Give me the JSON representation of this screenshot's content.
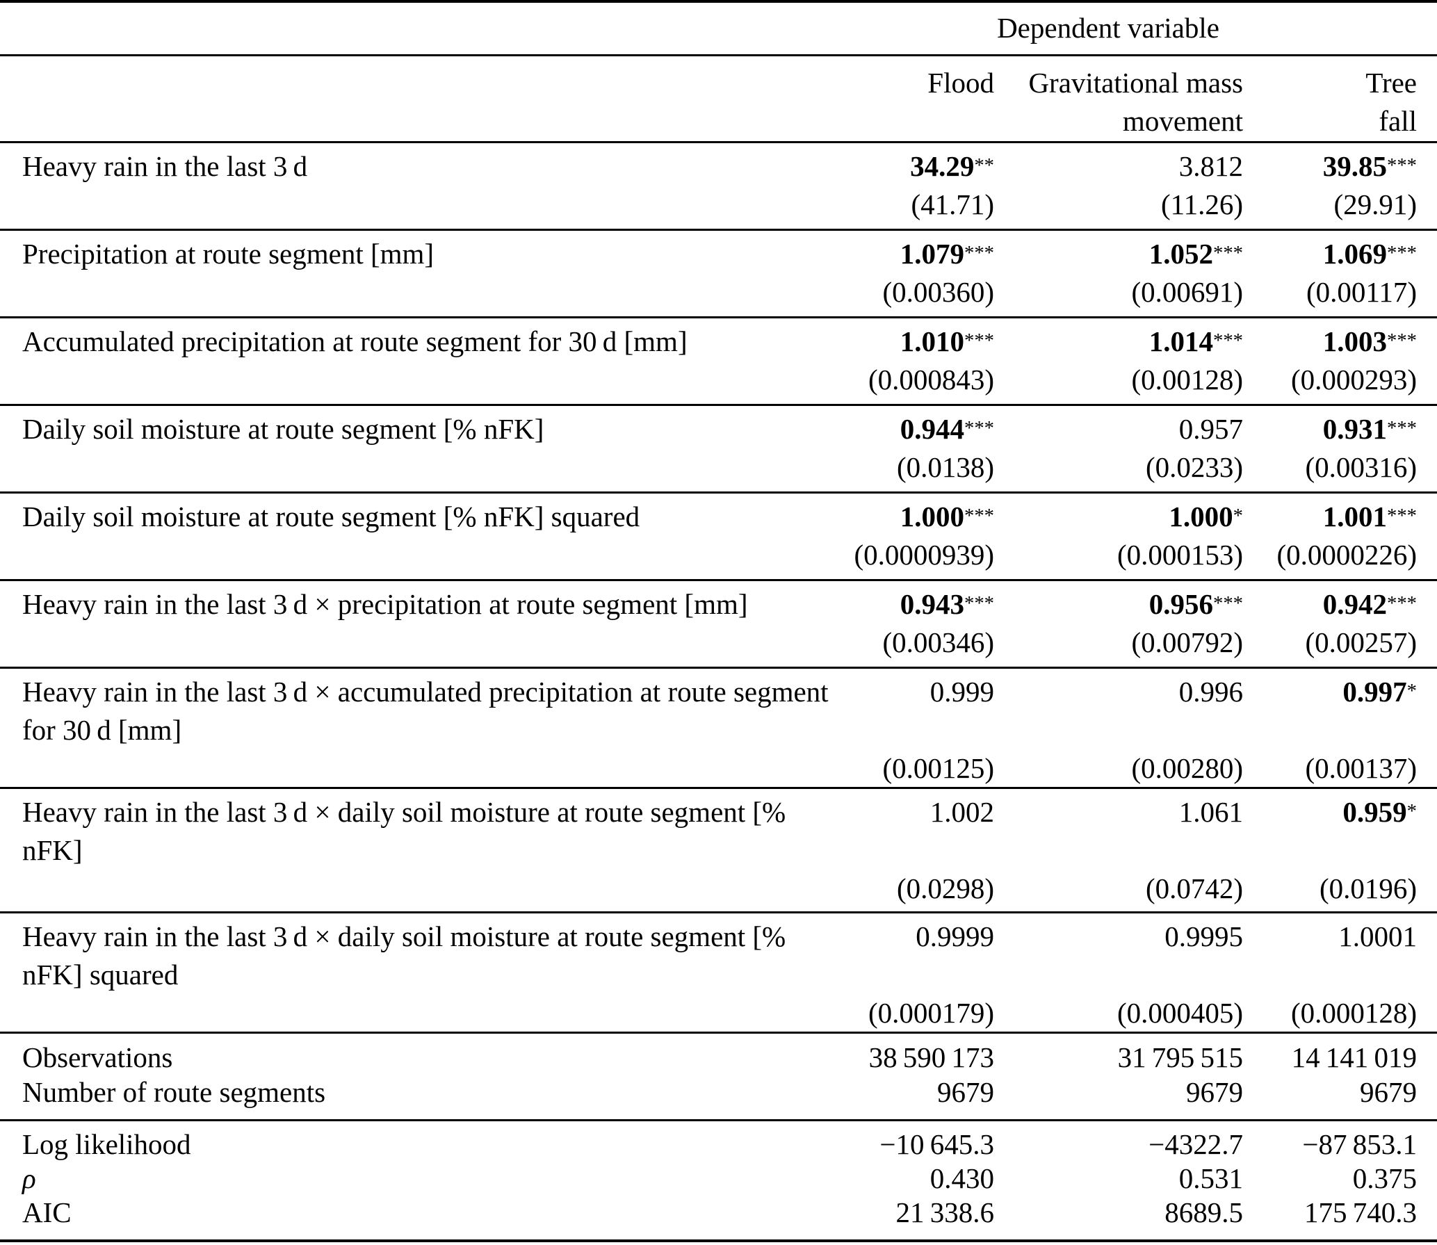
{
  "table": {
    "dependent_variable_header": "Dependent variable",
    "columns": [
      {
        "lines": [
          "Flood"
        ]
      },
      {
        "lines": [
          "Gravitational mass",
          "movement"
        ]
      },
      {
        "lines": [
          "Tree",
          "fall"
        ]
      }
    ],
    "rows": [
      {
        "label_lines": [
          "Heavy rain in the last 3 d"
        ],
        "cells": [
          {
            "coef": "34.29",
            "stars": "**",
            "bold": true,
            "se": "(41.71)"
          },
          {
            "coef": "3.812",
            "stars": "",
            "bold": false,
            "se": "(11.26)"
          },
          {
            "coef": "39.85",
            "stars": "***",
            "bold": true,
            "se": "(29.91)"
          }
        ]
      },
      {
        "label_lines": [
          "Precipitation at route segment [mm]"
        ],
        "cells": [
          {
            "coef": "1.079",
            "stars": "***",
            "bold": true,
            "se": "(0.00360)"
          },
          {
            "coef": "1.052",
            "stars": "***",
            "bold": true,
            "se": "(0.00691)"
          },
          {
            "coef": "1.069",
            "stars": "***",
            "bold": true,
            "se": "(0.00117)"
          }
        ]
      },
      {
        "label_lines": [
          "Accumulated precipitation at route segment for 30 d [mm]"
        ],
        "cells": [
          {
            "coef": "1.010",
            "stars": "***",
            "bold": true,
            "se": "(0.000843)"
          },
          {
            "coef": "1.014",
            "stars": "***",
            "bold": true,
            "se": "(0.00128)"
          },
          {
            "coef": "1.003",
            "stars": "***",
            "bold": true,
            "se": "(0.000293)"
          }
        ]
      },
      {
        "label_lines": [
          "Daily soil moisture at route segment [% nFK]"
        ],
        "cells": [
          {
            "coef": "0.944",
            "stars": "***",
            "bold": true,
            "se": "(0.0138)"
          },
          {
            "coef": "0.957",
            "stars": "",
            "bold": false,
            "se": "(0.0233)"
          },
          {
            "coef": "0.931",
            "stars": "***",
            "bold": true,
            "se": "(0.00316)"
          }
        ]
      },
      {
        "label_lines": [
          "Daily soil moisture at route segment [% nFK] squared"
        ],
        "cells": [
          {
            "coef": "1.000",
            "stars": "***",
            "bold": true,
            "se": "(0.0000939)"
          },
          {
            "coef": "1.000",
            "stars": "*",
            "bold": true,
            "se": "(0.000153)"
          },
          {
            "coef": "1.001",
            "stars": "***",
            "bold": true,
            "se": "(0.0000226)"
          }
        ]
      },
      {
        "label_lines": [
          "Heavy rain in the last 3 d × precipitation at route segment [mm]"
        ],
        "cells": [
          {
            "coef": "0.943",
            "stars": "***",
            "bold": true,
            "se": "(0.00346)"
          },
          {
            "coef": "0.956",
            "stars": "***",
            "bold": true,
            "se": "(0.00792)"
          },
          {
            "coef": "0.942",
            "stars": "***",
            "bold": true,
            "se": "(0.00257)"
          }
        ]
      },
      {
        "label_lines": [
          "Heavy rain in the last 3 d × accumulated precipitation at route segment",
          "for 30 d [mm]"
        ],
        "cells": [
          {
            "coef": "0.999",
            "stars": "",
            "bold": false,
            "se": "(0.00125)"
          },
          {
            "coef": "0.996",
            "stars": "",
            "bold": false,
            "se": "(0.00280)"
          },
          {
            "coef": "0.997",
            "stars": "*",
            "bold": true,
            "se": "(0.00137)"
          }
        ]
      },
      {
        "label_lines": [
          "Heavy rain in the last 3 d × daily soil moisture at route segment [%",
          "nFK]"
        ],
        "cells": [
          {
            "coef": "1.002",
            "stars": "",
            "bold": false,
            "se": "(0.0298)"
          },
          {
            "coef": "1.061",
            "stars": "",
            "bold": false,
            "se": "(0.0742)"
          },
          {
            "coef": "0.959",
            "stars": "*",
            "bold": true,
            "se": "(0.0196)"
          }
        ]
      },
      {
        "label_lines": [
          "Heavy rain in the last 3 d × daily soil moisture at route segment [%",
          "nFK] squared"
        ],
        "cells": [
          {
            "coef": "0.9999",
            "stars": "",
            "bold": false,
            "se": "(0.000179)"
          },
          {
            "coef": "0.9995",
            "stars": "",
            "bold": false,
            "se": "(0.000405)"
          },
          {
            "coef": "1.0001",
            "stars": "",
            "bold": false,
            "se": "(0.000128)"
          }
        ]
      }
    ],
    "stats_blocks": [
      {
        "rows": [
          {
            "label": "Observations",
            "italic": false,
            "values": [
              "38 590 173",
              "31 795 515",
              "14 141 019"
            ]
          },
          {
            "label": "Number of route segments",
            "italic": false,
            "values": [
              "9679",
              "9679",
              "9679"
            ]
          }
        ]
      },
      {
        "rows": [
          {
            "label": "Log likelihood",
            "italic": false,
            "values": [
              "−10 645.3",
              "−4322.7",
              "−87 853.1"
            ]
          },
          {
            "label": "ρ",
            "italic": true,
            "values": [
              "0.430",
              "0.531",
              "0.375"
            ]
          },
          {
            "label": "AIC",
            "italic": false,
            "values": [
              "21 338.6",
              "8689.5",
              "175 740.3"
            ]
          }
        ]
      }
    ]
  }
}
